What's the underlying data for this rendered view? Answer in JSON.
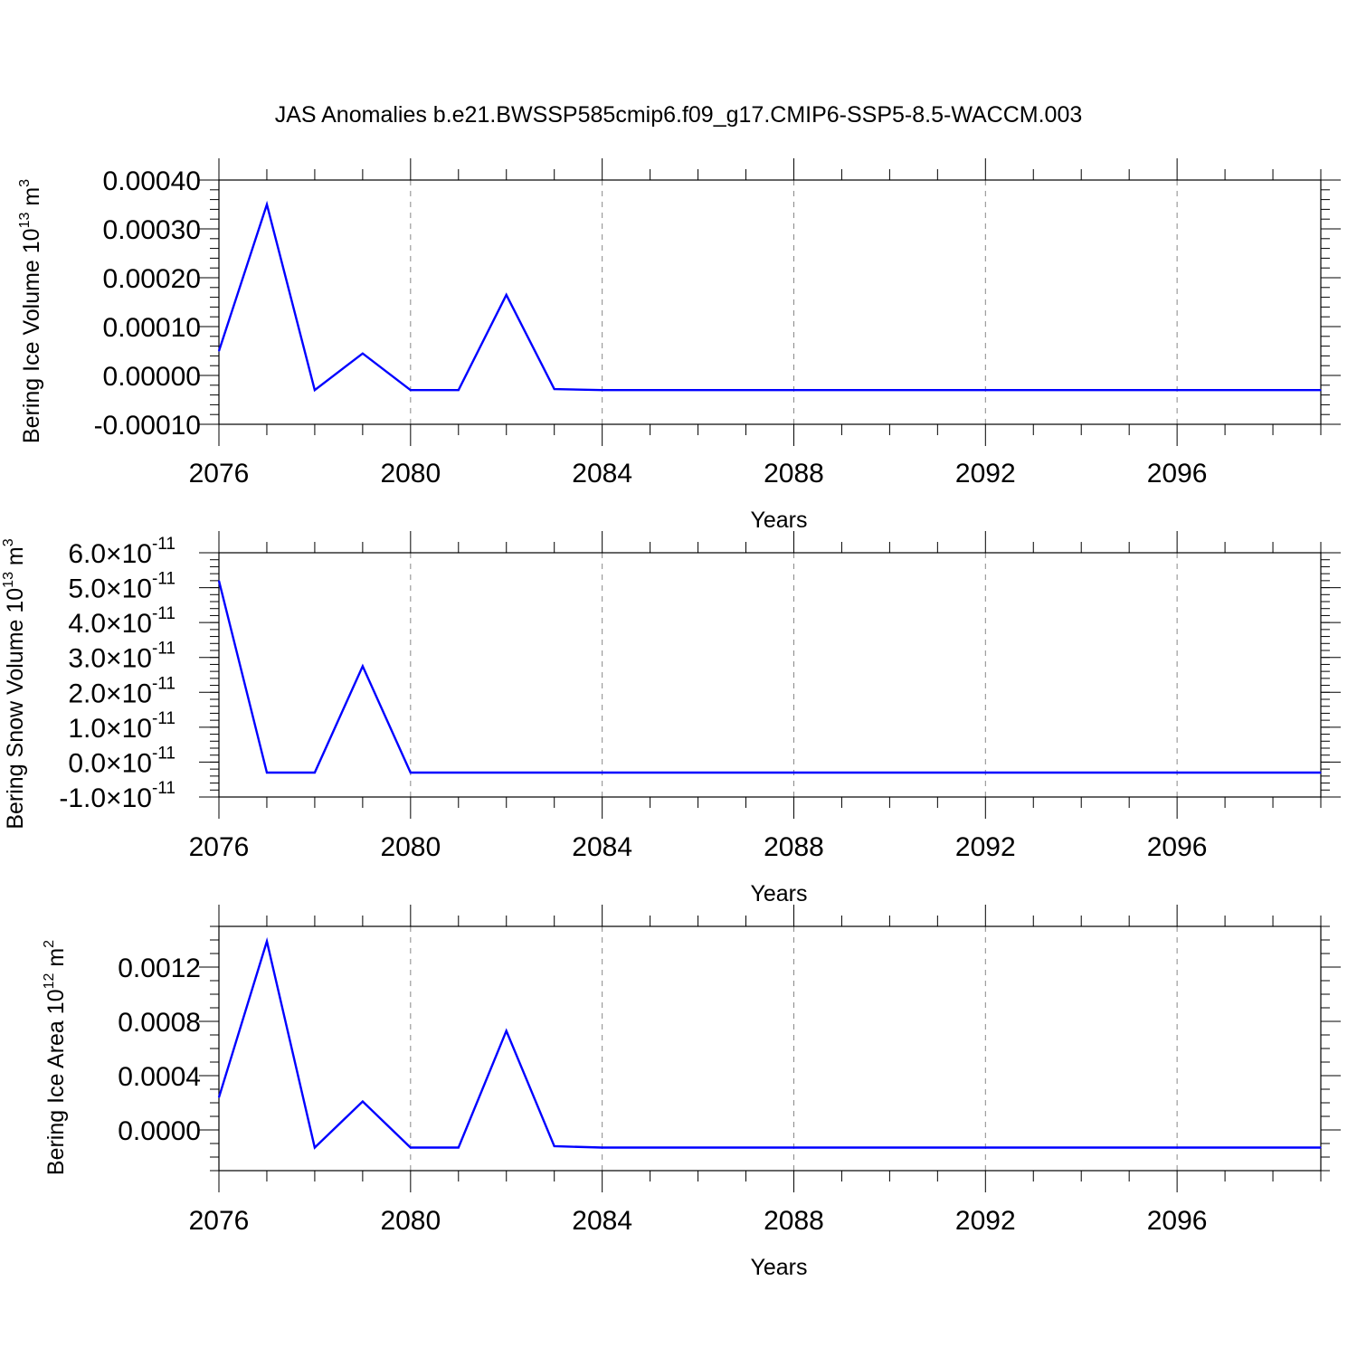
{
  "figure": {
    "title": "JAS Anomalies b.e21.BWSSP585cmip6.f09_g17.CMIP6-SSP5-8.5-WACCM.003"
  },
  "chart_data": [
    {
      "type": "line",
      "title": "",
      "xlabel": "Years",
      "ylabel": "Bering Ice Volume 10",
      "ylabel_sup": "13",
      "ylabel_unit": " m",
      "ylabel_unit_sup": "3",
      "xlim": [
        2076,
        2099
      ],
      "ylim": [
        -0.0001,
        0.0004
      ],
      "x_ticks": [
        2076,
        2080,
        2084,
        2088,
        2092,
        2096
      ],
      "x_tick_labels": [
        "2076",
        "2080",
        "2084",
        "2088",
        "2092",
        "2096"
      ],
      "y_ticks": [
        -0.0001,
        0.0,
        0.0001,
        0.0002,
        0.0003,
        0.0004
      ],
      "y_tick_labels": [
        "-0.00010",
        "0.00000",
        "0.00010",
        "0.00020",
        "0.00030",
        "0.00040"
      ],
      "y_minor_step": 2e-05,
      "grid": "vertical dashed at major x ticks",
      "color": "#0000ff",
      "series": [
        {
          "x": [
            2076,
            2077,
            2078,
            2079,
            2080,
            2081,
            2082,
            2083,
            2084,
            2085,
            2086,
            2087,
            2088,
            2089,
            2090,
            2091,
            2092,
            2093,
            2094,
            2095,
            2096,
            2097,
            2098,
            2099
          ],
          "values": [
            5e-05,
            0.00035,
            -3e-05,
            4.5e-05,
            -3e-05,
            -3e-05,
            0.000165,
            -2.8e-05,
            -3e-05,
            -3e-05,
            -3e-05,
            -3e-05,
            -3e-05,
            -3e-05,
            -3e-05,
            -3e-05,
            -3e-05,
            -3e-05,
            -3e-05,
            -3e-05,
            -3e-05,
            -3e-05,
            -3e-05,
            -3e-05
          ]
        }
      ]
    },
    {
      "type": "line",
      "title": "",
      "xlabel": "Years",
      "ylabel": "Bering Snow Volume 10",
      "ylabel_sup": "13",
      "ylabel_unit": " m",
      "ylabel_unit_sup": "3",
      "xlim": [
        2076,
        2099
      ],
      "ylim": [
        -1e-11,
        6e-11
      ],
      "x_ticks": [
        2076,
        2080,
        2084,
        2088,
        2092,
        2096
      ],
      "x_tick_labels": [
        "2076",
        "2080",
        "2084",
        "2088",
        "2092",
        "2096"
      ],
      "y_ticks": [
        -1e-11,
        0.0,
        1e-11,
        2e-11,
        3e-11,
        4e-11,
        5e-11,
        6e-11
      ],
      "y_tick_mantissas": [
        "-1.0",
        "0.0",
        "1.0",
        "2.0",
        "3.0",
        "4.0",
        "5.0",
        "6.0"
      ],
      "y_tick_times": "×10",
      "y_tick_exponent": "-11",
      "y_minor_step": 2e-12,
      "grid": "vertical dashed at major x ticks",
      "color": "#0000ff",
      "series": [
        {
          "x": [
            2076,
            2077,
            2078,
            2079,
            2080,
            2081,
            2082,
            2083,
            2084,
            2085,
            2086,
            2087,
            2088,
            2089,
            2090,
            2091,
            2092,
            2093,
            2094,
            2095,
            2096,
            2097,
            2098,
            2099
          ],
          "values": [
            5.2e-11,
            -3e-12,
            -3e-12,
            2.75e-11,
            -3e-12,
            -3e-12,
            -3e-12,
            -3e-12,
            -3e-12,
            -3e-12,
            -3e-12,
            -3e-12,
            -3e-12,
            -3e-12,
            -3e-12,
            -3e-12,
            -3e-12,
            -3e-12,
            -3e-12,
            -3e-12,
            -3e-12,
            -3e-12,
            -3e-12,
            -3e-12
          ]
        }
      ]
    },
    {
      "type": "line",
      "title": "",
      "xlabel": "Years",
      "ylabel": "Bering Ice Area 10",
      "ylabel_sup": "12",
      "ylabel_unit": " m",
      "ylabel_unit_sup": "2",
      "xlim": [
        2076,
        2099
      ],
      "ylim": [
        -0.0003,
        0.0015
      ],
      "x_ticks": [
        2076,
        2080,
        2084,
        2088,
        2092,
        2096
      ],
      "x_tick_labels": [
        "2076",
        "2080",
        "2084",
        "2088",
        "2092",
        "2096"
      ],
      "y_ticks": [
        0.0,
        0.0004,
        0.0008,
        0.0012
      ],
      "y_tick_labels": [
        "0.0000",
        "0.0004",
        "0.0008",
        "0.0012"
      ],
      "y_minor_step": 0.0001,
      "grid": "vertical dashed at major x ticks",
      "color": "#0000ff",
      "series": [
        {
          "x": [
            2076,
            2077,
            2078,
            2079,
            2080,
            2081,
            2082,
            2083,
            2084,
            2085,
            2086,
            2087,
            2088,
            2089,
            2090,
            2091,
            2092,
            2093,
            2094,
            2095,
            2096,
            2097,
            2098,
            2099
          ],
          "values": [
            0.00024,
            0.00139,
            -0.00013,
            0.00021,
            -0.00013,
            -0.00013,
            0.00073,
            -0.00012,
            -0.00013,
            -0.00013,
            -0.00013,
            -0.00013,
            -0.00013,
            -0.00013,
            -0.00013,
            -0.00013,
            -0.00013,
            -0.00013,
            -0.00013,
            -0.00013,
            -0.00013,
            -0.00013,
            -0.00013,
            -0.00013
          ]
        }
      ]
    }
  ]
}
